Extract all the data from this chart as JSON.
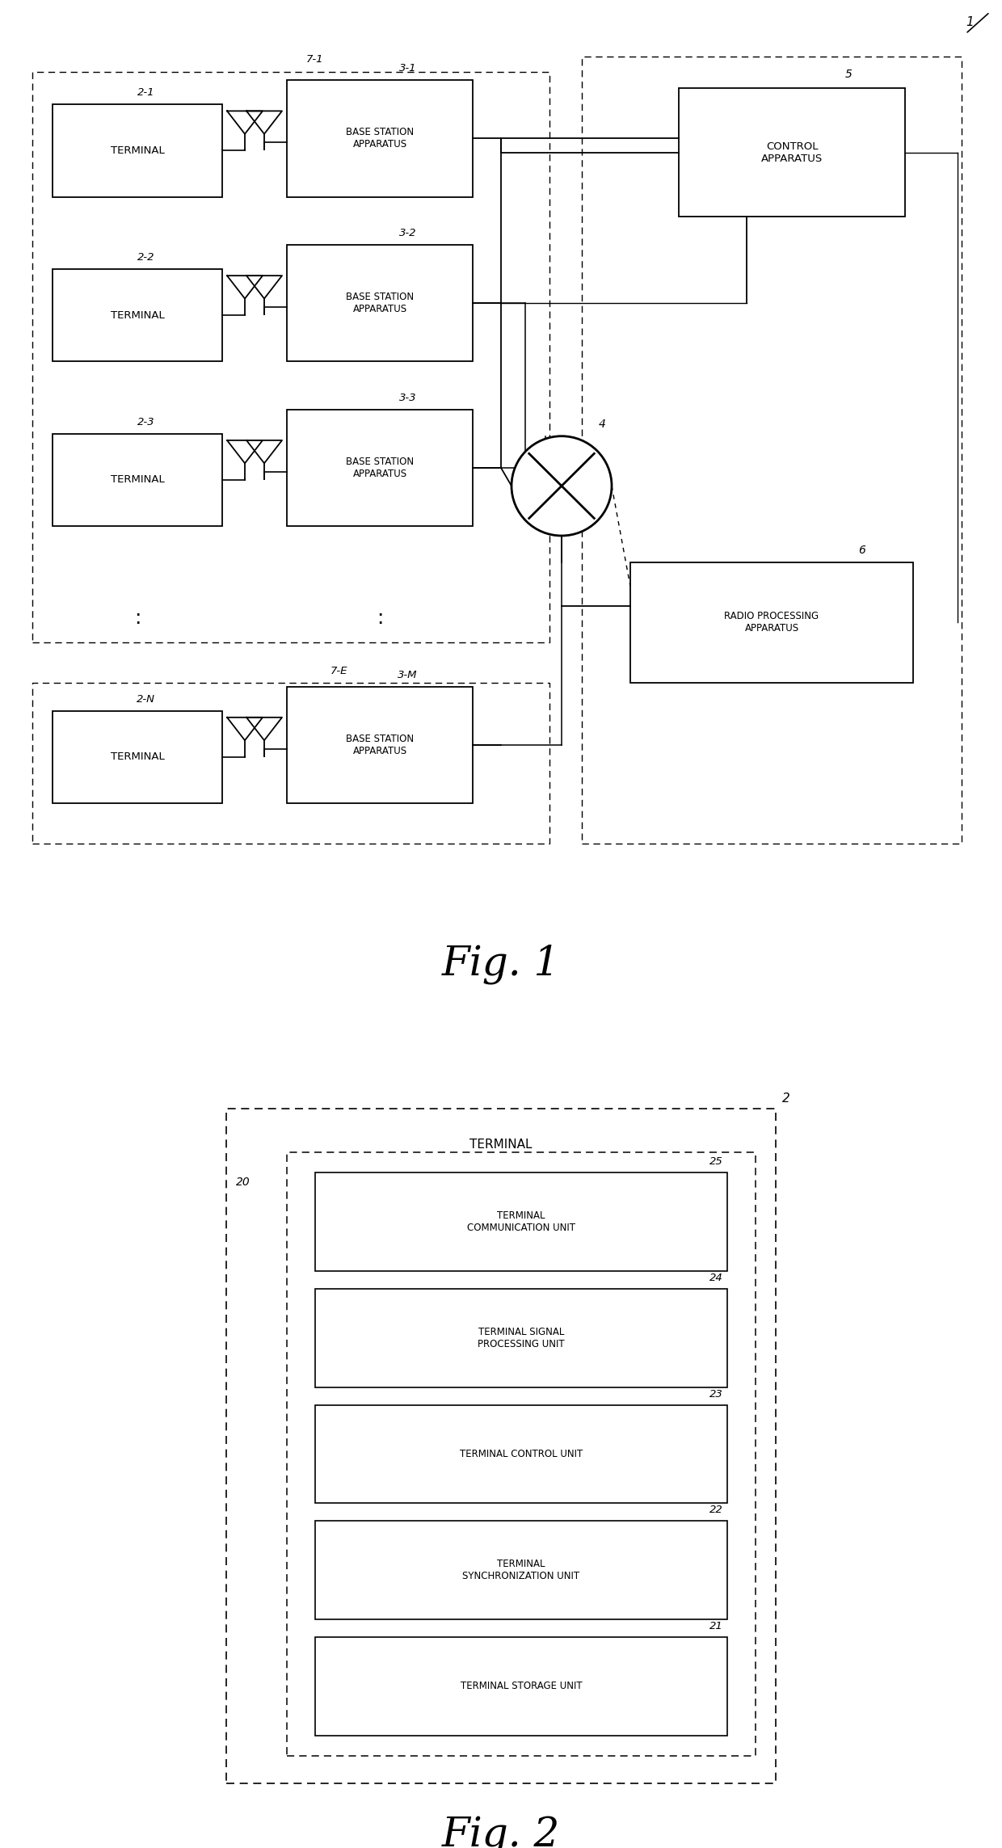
{
  "bg_color": "#ffffff",
  "box_color": "#000000",
  "text_color": "#000000",
  "line_color": "#000000",
  "fig1": {
    "title": "Fig. 1",
    "cell71_label": "7-1",
    "cell7E_label": "7-E",
    "sys_label": "1",
    "terminals": [
      "2-1",
      "2-2",
      "2-3",
      "2-N"
    ],
    "base_stations": [
      "3-1",
      "3-2",
      "3-3",
      "3-M"
    ],
    "ctrl_label": "5",
    "ctrl_text": "CONTROL\nAPPARATUS",
    "radio_label": "6",
    "radio_text": "RADIO PROCESSING\nAPPARATUS",
    "switch_label": "4",
    "ellipsis_term": ":",
    "ellipsis_bs": ":"
  },
  "fig2": {
    "title": "Fig. 2",
    "outer_label": "2",
    "outer_title": "TERMINAL",
    "module_label": "20",
    "unit_labels": [
      "25",
      "24",
      "23",
      "22",
      "21"
    ],
    "unit_texts": [
      "TERMINAL\nCOMMUNICATION UNIT",
      "TERMINAL SIGNAL\nPROCESSING UNIT",
      "TERMINAL CONTROL UNIT",
      "TERMINAL\nSYNCHRONIZATION UNIT",
      "TERMINAL STORAGE UNIT"
    ]
  }
}
